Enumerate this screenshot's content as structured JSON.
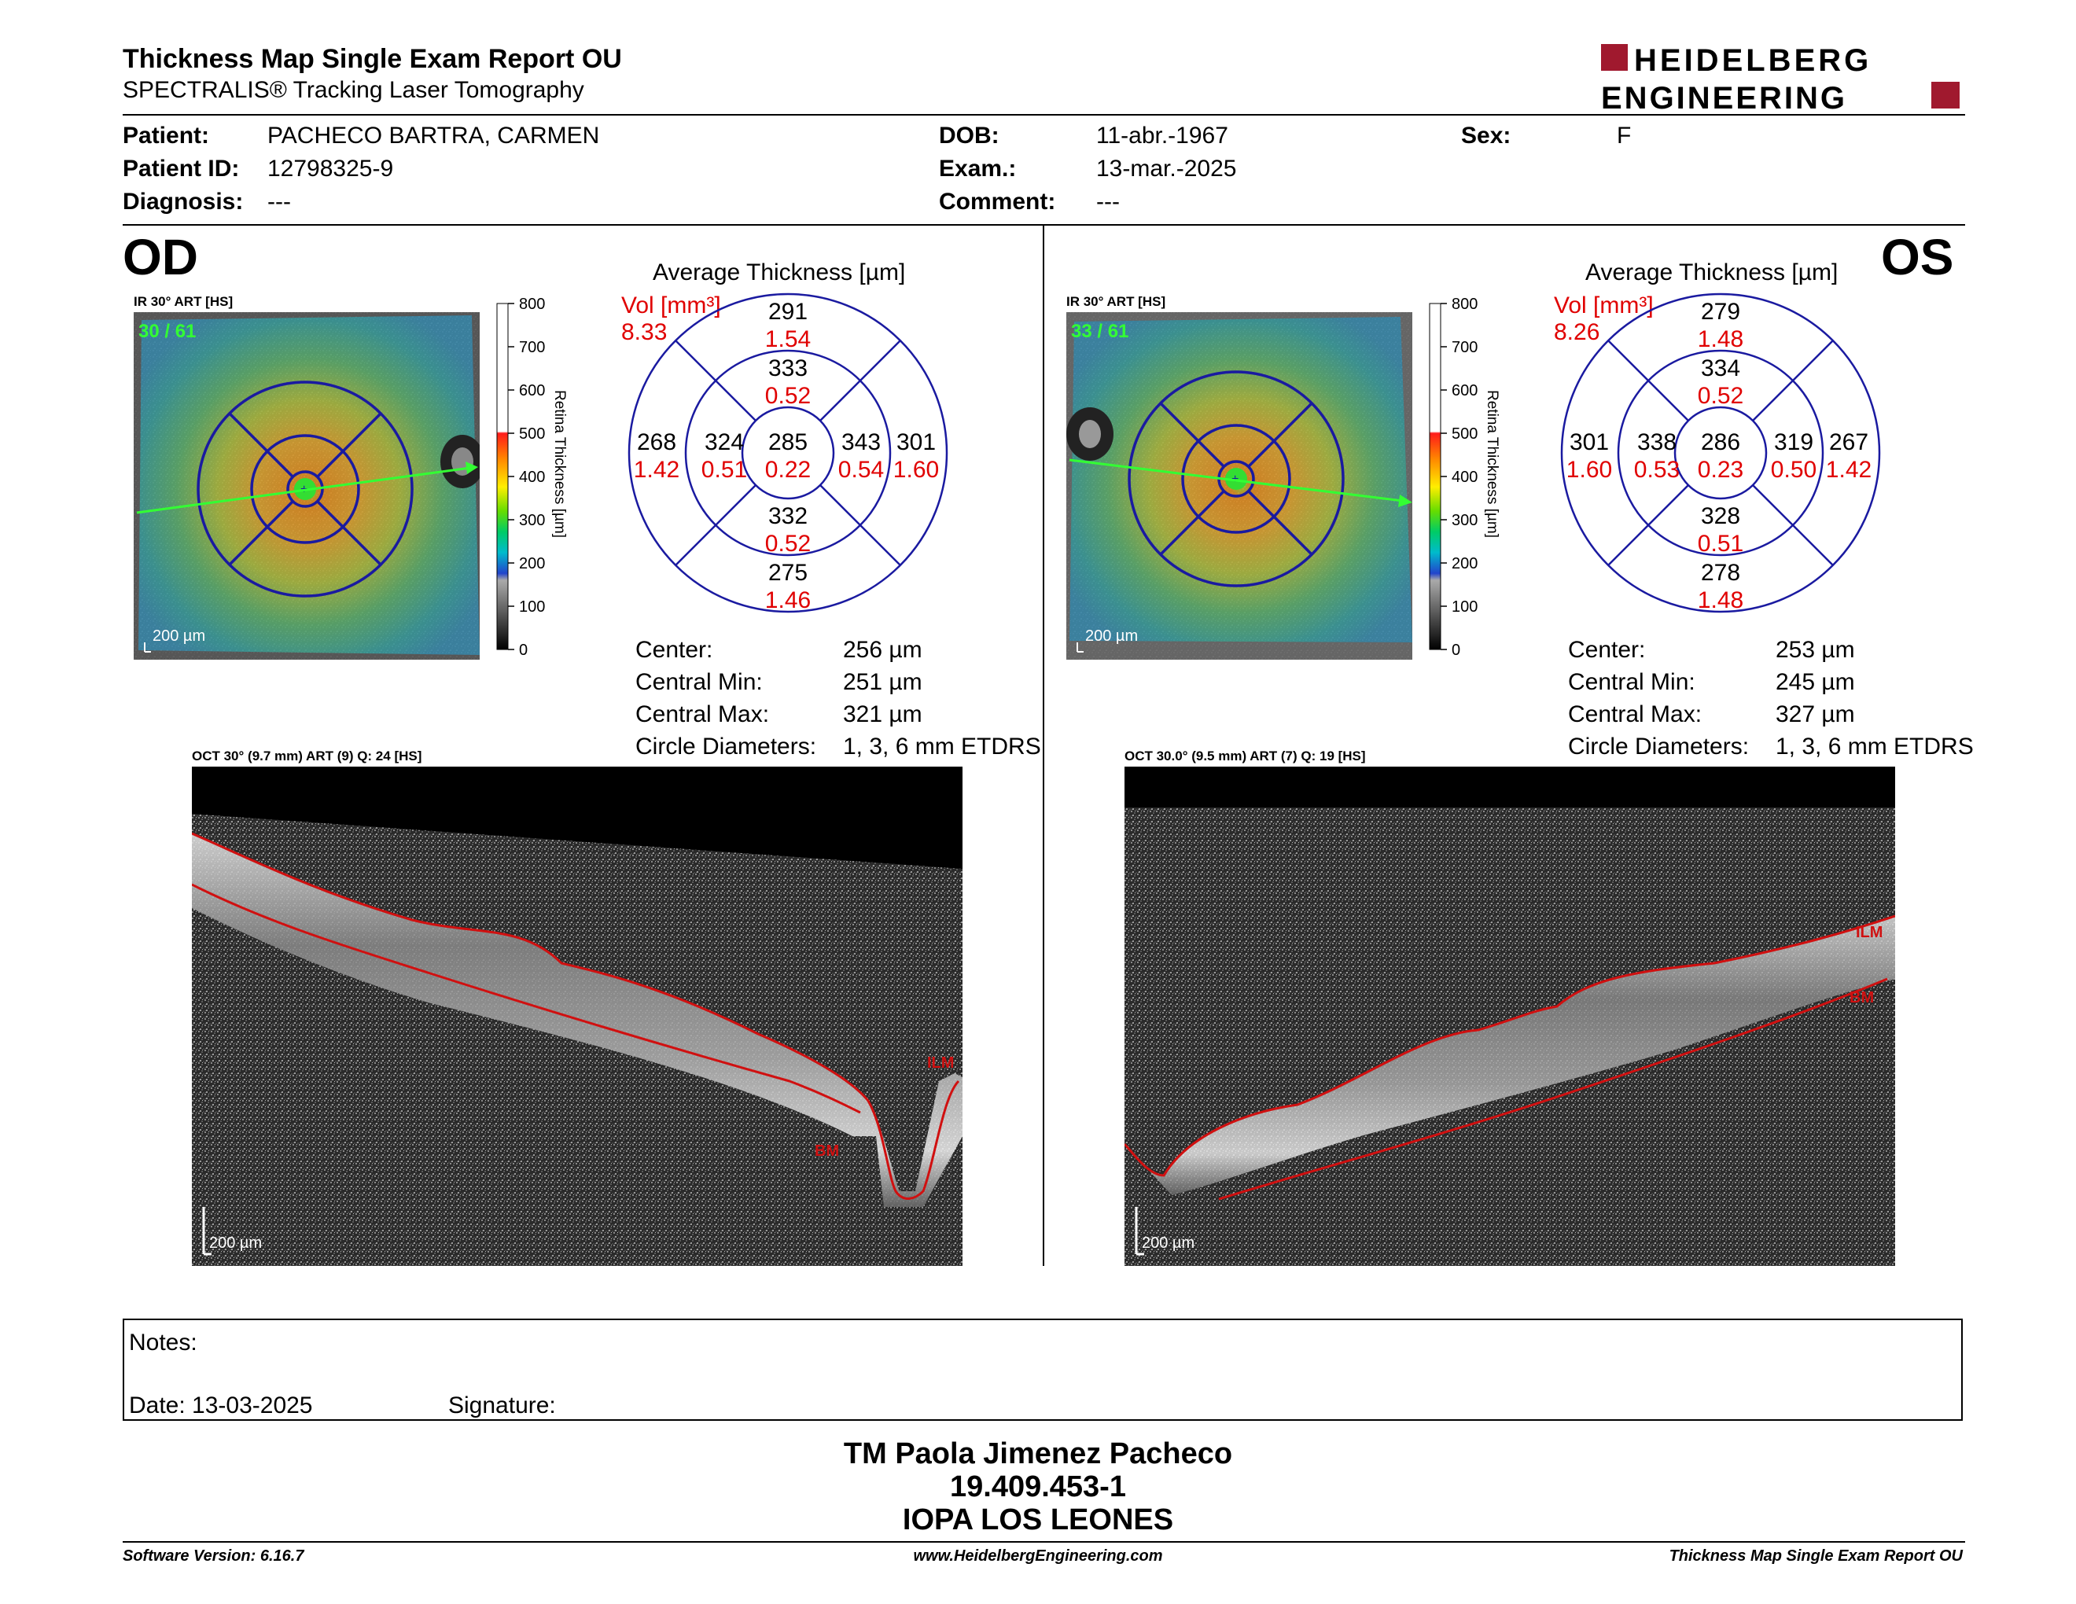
{
  "header": {
    "title": "Thickness Map Single Exam Report OU",
    "subtitle": "SPECTRALIS® Tracking Laser Tomography",
    "logo_line1": "HEIDELBERG",
    "logo_line2": "ENGINEERING"
  },
  "patient": {
    "patient_label": "Patient:",
    "patient_value": "PACHECO BARTRA, CARMEN",
    "id_label": "Patient ID:",
    "id_value": "12798325-9",
    "diagnosis_label": "Diagnosis:",
    "diagnosis_value": "---",
    "dob_label": "DOB:",
    "dob_value": "11-abr.-1967",
    "exam_label": "Exam.:",
    "exam_value": "13-mar.-2025",
    "comment_label": "Comment:",
    "comment_value": "---",
    "sex_label": "Sex:",
    "sex_value": "F"
  },
  "scale": {
    "ticks": [
      "800",
      "700",
      "600",
      "500",
      "400",
      "300",
      "200",
      "100",
      "0"
    ],
    "axis_label": "Retina Thickness [µm]"
  },
  "od": {
    "eye": "OD",
    "ir_label": "IR 30° ART [HS]",
    "frame": "30 / 61",
    "ir_scalebar": "200 µm",
    "avg_title": "Average Thickness [µm]",
    "vol_label": "Vol [mm³]",
    "vol_value": "8.33",
    "grid": {
      "center": {
        "t": "285",
        "v": "0.22"
      },
      "inner_sup": {
        "t": "333",
        "v": "0.52"
      },
      "inner_inf": {
        "t": "332",
        "v": "0.52"
      },
      "inner_left": {
        "t": "324",
        "v": "0.51"
      },
      "inner_right": {
        "t": "343",
        "v": "0.54"
      },
      "outer_sup": {
        "t": "291",
        "v": "1.54"
      },
      "outer_inf": {
        "t": "275",
        "v": "1.46"
      },
      "outer_left": {
        "t": "268",
        "v": "1.42"
      },
      "outer_right": {
        "t": "301",
        "v": "1.60"
      }
    },
    "stats": [
      {
        "label": "Center:",
        "value": "256 µm"
      },
      {
        "label": "Central Min:",
        "value": "251 µm"
      },
      {
        "label": "Central Max:",
        "value": "321 µm"
      },
      {
        "label": "Circle Diameters:",
        "value": "1, 3, 6 mm ETDRS"
      }
    ],
    "oct_label": "OCT 30° (9.7 mm) ART (9) Q: 24 [HS]",
    "oct_scalebar": "200 µm",
    "ilm": "ILM",
    "bm": "BM"
  },
  "os": {
    "eye": "OS",
    "ir_label": "IR 30° ART [HS]",
    "frame": "33 / 61",
    "ir_scalebar": "200 µm",
    "avg_title": "Average Thickness [µm]",
    "vol_label": "Vol [mm³]",
    "vol_value": "8.26",
    "grid": {
      "center": {
        "t": "286",
        "v": "0.23"
      },
      "inner_sup": {
        "t": "334",
        "v": "0.52"
      },
      "inner_inf": {
        "t": "328",
        "v": "0.51"
      },
      "inner_left": {
        "t": "338",
        "v": "0.53"
      },
      "inner_right": {
        "t": "319",
        "v": "0.50"
      },
      "outer_sup": {
        "t": "279",
        "v": "1.48"
      },
      "outer_inf": {
        "t": "278",
        "v": "1.48"
      },
      "outer_left": {
        "t": "301",
        "v": "1.60"
      },
      "outer_right": {
        "t": "267",
        "v": "1.42"
      }
    },
    "stats": [
      {
        "label": "Center:",
        "value": "253 µm"
      },
      {
        "label": "Central Min:",
        "value": "245 µm"
      },
      {
        "label": "Central Max:",
        "value": "327 µm"
      },
      {
        "label": "Circle Diameters:",
        "value": "1, 3, 6 mm ETDRS"
      }
    ],
    "oct_label": "OCT 30.0° (9.5 mm) ART (7) Q: 19 [HS]",
    "oct_scalebar": "200 µm",
    "ilm": "ILM",
    "bm": "BM"
  },
  "notes": {
    "notes_label": "Notes:",
    "date_label": "Date: 13-03-2025",
    "signature_label": "Signature:"
  },
  "signatory": {
    "name": "TM Paola Jimenez Pacheco",
    "rut": "19.409.453-1",
    "institution": "IOPA LOS LEONES"
  },
  "footer": {
    "software": "Software Version: 6.16.7",
    "website": "www.HeidelbergEngineering.com",
    "report": "Thickness Map Single Exam Report OU"
  },
  "colors": {
    "accent_red": "#a0192e",
    "grid_blue": "#1a1aa0",
    "volume_red": "#e00000",
    "frame_green": "#33ff33",
    "segmentation_red": "#d01010"
  }
}
